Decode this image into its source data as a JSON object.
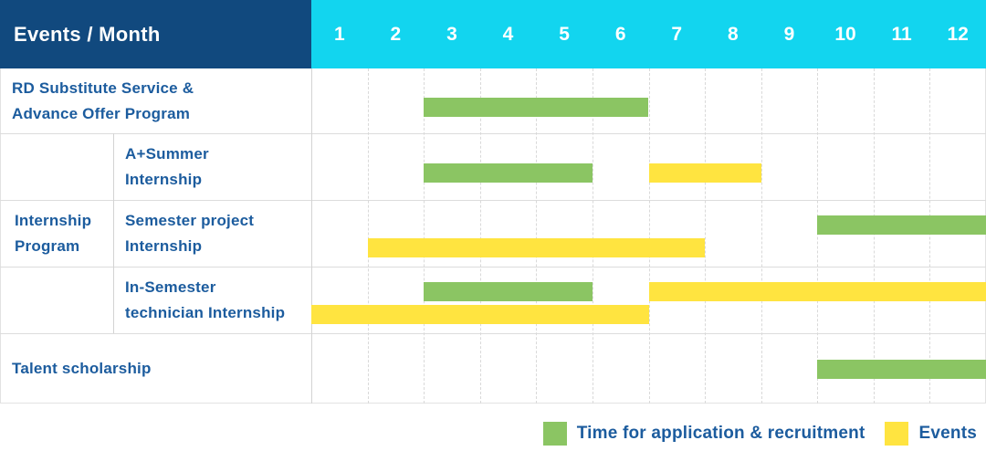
{
  "header": {
    "title": "Events / Month"
  },
  "colors": {
    "navy": "#11497E",
    "cyan": "#12D5EF",
    "green": "#8BC563",
    "yellow": "#FFE440",
    "label_text": "#1C5C9E",
    "grid": "#DCDCDC"
  },
  "chart_data": {
    "type": "bar",
    "variant": "gantt",
    "title": "Events / Month",
    "months": [
      "1",
      "2",
      "3",
      "4",
      "5",
      "6",
      "7",
      "8",
      "9",
      "10",
      "11",
      "12"
    ],
    "x_range": [
      1,
      12
    ],
    "grid": true,
    "legend_position": "bottom-right",
    "series_meaning": {
      "green": "Time for application & recruitment",
      "yellow": "Events"
    },
    "group_label_lines": [
      "Internship",
      "Program"
    ],
    "rows": [
      {
        "group": "",
        "label_lines": [
          "RD Substitute Service &",
          "Advance Offer Program"
        ],
        "bars": [
          {
            "color": "green",
            "start_month": 3,
            "end_month": 6,
            "line": "single"
          }
        ]
      },
      {
        "group": "Internship Program",
        "label_lines": [
          "A+Summer",
          "Internship"
        ],
        "bars": [
          {
            "color": "green",
            "start_month": 3,
            "end_month": 5,
            "line": "single"
          },
          {
            "color": "yellow",
            "start_month": 7,
            "end_month": 8,
            "line": "single"
          }
        ]
      },
      {
        "group": "Internship Program",
        "label_lines": [
          "Semester project",
          "Internship"
        ],
        "bars": [
          {
            "color": "green",
            "start_month": 10,
            "end_month": 12,
            "line": "top"
          },
          {
            "color": "yellow",
            "start_month": 2,
            "end_month": 7,
            "line": "bottom"
          }
        ]
      },
      {
        "group": "Internship Program",
        "label_lines": [
          "In-Semester",
          "technician Internship"
        ],
        "bars": [
          {
            "color": "green",
            "start_month": 3,
            "end_month": 5,
            "line": "top"
          },
          {
            "color": "yellow",
            "start_month": 7,
            "end_month": 12,
            "line": "top"
          },
          {
            "color": "yellow",
            "start_month": 1,
            "end_month": 6,
            "line": "bottom"
          }
        ]
      },
      {
        "group": "",
        "label_lines": [
          "Talent scholarship"
        ],
        "bars": [
          {
            "color": "green",
            "start_month": 10,
            "end_month": 12,
            "line": "single"
          }
        ]
      }
    ],
    "legend": [
      {
        "color": "green",
        "label": "Time for application & recruitment"
      },
      {
        "color": "yellow",
        "label": "Events"
      }
    ]
  }
}
